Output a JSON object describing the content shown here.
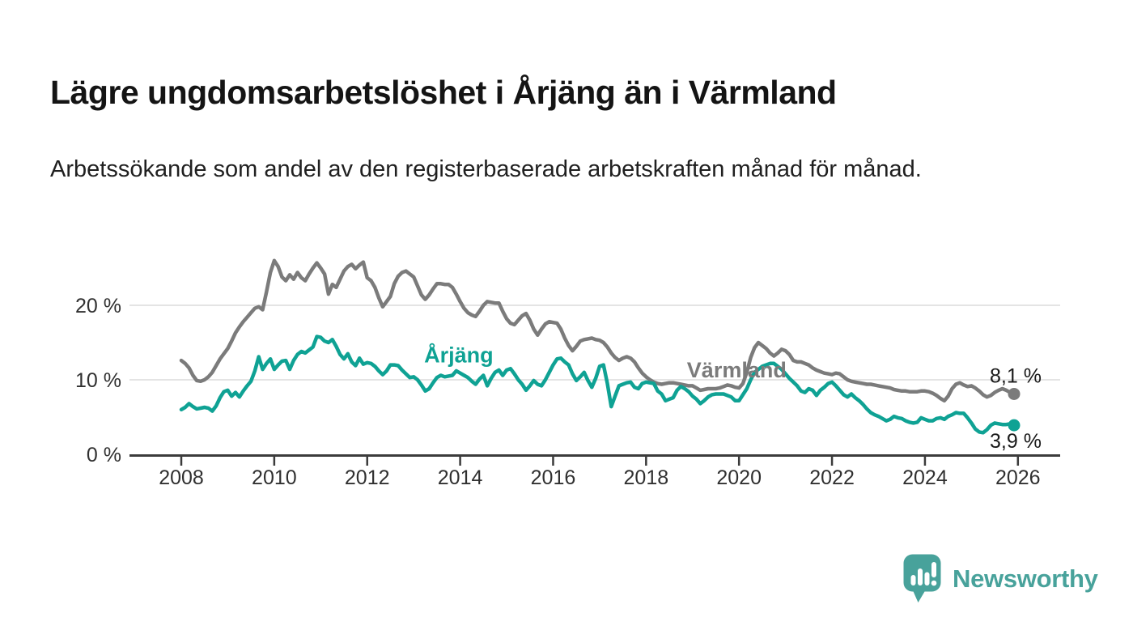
{
  "header": {
    "title": "Lägre ungdomsarbetslöshet i Årjäng än i Värmland",
    "subtitle": "Arbetssökande som andel av den registerbaserade arbetskraften månad för månad."
  },
  "footer": {
    "brand": "Newsworthy"
  },
  "colors": {
    "arjang_teal": "#0FA294",
    "varmland_gray": "#7B7B7B",
    "axis": "#3b3b3b",
    "grid": "#dcdcdc",
    "tick_text": "#303030",
    "value_label_text": "#1a1a1a",
    "brand_teal": "#48A29B"
  },
  "chart_data": {
    "type": "line",
    "title": "Lägre ungdomsarbetslöshet i Årjäng än i Värmland",
    "xlabel": "",
    "ylabel": "",
    "grid": "horizontal",
    "legend_position": "inline-labels",
    "ylim": [
      0,
      27.5
    ],
    "xlim": [
      2006.9,
      2026.9
    ],
    "x_start": 2008.0,
    "x_step": 0.083333,
    "yticks": [
      {
        "v": 0,
        "label": "0 %"
      },
      {
        "v": 10,
        "label": "10 %"
      },
      {
        "v": 20,
        "label": "20 %"
      }
    ],
    "xticks": [
      {
        "v": 2008,
        "label": "2008"
      },
      {
        "v": 2010,
        "label": "2010"
      },
      {
        "v": 2012,
        "label": "2012"
      },
      {
        "v": 2014,
        "label": "2014"
      },
      {
        "v": 2016,
        "label": "2016"
      },
      {
        "v": 2018,
        "label": "2018"
      },
      {
        "v": 2020,
        "label": "2020"
      },
      {
        "v": 2022,
        "label": "2022"
      },
      {
        "v": 2024,
        "label": "2024"
      },
      {
        "v": 2026,
        "label": "2026"
      }
    ],
    "series": [
      {
        "name": "Värmland",
        "key": "varmland",
        "color": "#7B7B7B",
        "end_label": "8,1 %",
        "end_label_pos": "above",
        "end_dot": true,
        "label_anchor": {
          "year": 2019.95,
          "value": 11.3
        },
        "values": [
          12.6,
          12.2,
          11.6,
          10.6,
          9.9,
          9.8,
          10.0,
          10.4,
          11.0,
          11.9,
          12.8,
          13.5,
          14.2,
          15.2,
          16.3,
          17.1,
          17.8,
          18.4,
          19.0,
          19.6,
          19.8,
          19.4,
          21.8,
          24.4,
          26.0,
          25.2,
          23.8,
          23.3,
          24.1,
          23.5,
          24.4,
          23.7,
          23.3,
          24.2,
          25.0,
          25.7,
          25.0,
          24.2,
          21.5,
          22.8,
          22.4,
          23.5,
          24.6,
          25.2,
          25.5,
          24.9,
          25.4,
          25.8,
          23.7,
          23.3,
          22.4,
          21.0,
          19.8,
          20.5,
          21.2,
          22.9,
          23.9,
          24.4,
          24.6,
          24.2,
          23.8,
          22.6,
          21.4,
          20.8,
          21.4,
          22.2,
          22.9,
          22.9,
          22.8,
          22.8,
          22.4,
          21.5,
          20.5,
          19.6,
          19.0,
          18.7,
          18.5,
          19.2,
          20.0,
          20.5,
          20.4,
          20.3,
          20.3,
          19.2,
          18.2,
          17.6,
          17.4,
          18.0,
          18.6,
          18.9,
          18.0,
          16.8,
          16.0,
          16.8,
          17.5,
          17.8,
          17.7,
          17.6,
          16.8,
          15.6,
          14.6,
          13.9,
          14.5,
          15.2,
          15.4,
          15.5,
          15.6,
          15.4,
          15.3,
          15.0,
          14.4,
          13.6,
          13.0,
          12.6,
          12.9,
          13.1,
          12.9,
          12.4,
          11.6,
          10.9,
          10.4,
          10.0,
          9.7,
          9.5,
          9.4,
          9.5,
          9.6,
          9.6,
          9.5,
          9.4,
          9.3,
          9.2,
          9.2,
          8.9,
          8.6,
          8.7,
          8.8,
          8.8,
          8.8,
          8.9,
          9.1,
          9.3,
          9.2,
          9.0,
          8.9,
          9.5,
          11.0,
          13.0,
          14.3,
          15.0,
          14.6,
          14.2,
          13.6,
          13.2,
          13.6,
          14.1,
          13.9,
          13.4,
          12.6,
          12.4,
          12.4,
          12.2,
          12.0,
          11.6,
          11.3,
          11.1,
          10.9,
          10.8,
          10.7,
          10.9,
          10.8,
          10.4,
          10.0,
          9.8,
          9.7,
          9.6,
          9.5,
          9.4,
          9.4,
          9.3,
          9.2,
          9.1,
          9.0,
          8.9,
          8.7,
          8.6,
          8.5,
          8.5,
          8.4,
          8.4,
          8.4,
          8.5,
          8.5,
          8.4,
          8.2,
          7.9,
          7.5,
          7.2,
          7.8,
          8.8,
          9.4,
          9.6,
          9.3,
          9.1,
          9.2,
          8.9,
          8.5,
          8.0,
          7.7,
          7.9,
          8.3,
          8.6,
          8.8,
          8.6,
          8.3,
          8.1
        ]
      },
      {
        "name": "Årjäng",
        "key": "arjang",
        "color": "#0FA294",
        "end_label": "3,9 %",
        "end_label_pos": "below",
        "end_dot": true,
        "label_anchor": {
          "year": 2013.97,
          "value": 13.3
        },
        "values": [
          6.0,
          6.3,
          6.8,
          6.4,
          6.1,
          6.2,
          6.3,
          6.2,
          5.8,
          6.5,
          7.6,
          8.4,
          8.6,
          7.8,
          8.3,
          7.7,
          8.5,
          9.2,
          9.8,
          11.2,
          13.1,
          11.4,
          12.2,
          12.8,
          11.4,
          12.0,
          12.5,
          12.6,
          11.4,
          12.6,
          13.4,
          13.8,
          13.6,
          14.0,
          14.4,
          15.8,
          15.7,
          15.2,
          15.0,
          15.4,
          14.5,
          13.4,
          12.8,
          13.5,
          12.4,
          11.9,
          12.9,
          12.1,
          12.3,
          12.2,
          11.8,
          11.2,
          10.7,
          11.2,
          12.0,
          12.0,
          11.9,
          11.3,
          10.8,
          10.3,
          10.4,
          10.0,
          9.3,
          8.5,
          8.8,
          9.6,
          10.3,
          10.6,
          10.4,
          10.5,
          10.6,
          11.2,
          10.9,
          10.6,
          10.3,
          9.8,
          9.4,
          10.1,
          10.6,
          9.2,
          10.2,
          11.0,
          11.3,
          10.6,
          11.3,
          11.5,
          10.8,
          10.0,
          9.4,
          8.6,
          9.2,
          9.9,
          9.4,
          9.2,
          10.0,
          11.0,
          12.0,
          12.8,
          12.9,
          12.4,
          12.0,
          10.8,
          9.9,
          10.4,
          11.0,
          9.9,
          9.0,
          10.2,
          11.8,
          12.0,
          9.5,
          6.4,
          7.8,
          9.2,
          9.4,
          9.6,
          9.7,
          9.0,
          8.8,
          9.5,
          9.7,
          9.6,
          9.5,
          8.5,
          8.1,
          7.2,
          7.4,
          7.6,
          8.6,
          9.1,
          8.8,
          8.4,
          7.8,
          7.4,
          6.8,
          7.2,
          7.7,
          8.0,
          8.1,
          8.1,
          8.1,
          7.9,
          7.7,
          7.2,
          7.2,
          8.0,
          8.8,
          10.0,
          11.0,
          11.4,
          11.8,
          12.0,
          12.2,
          12.2,
          11.8,
          11.4,
          10.8,
          10.2,
          9.7,
          9.2,
          8.5,
          8.3,
          8.8,
          8.6,
          7.9,
          8.6,
          9.0,
          9.5,
          9.7,
          9.2,
          8.6,
          8.0,
          7.7,
          8.1,
          7.6,
          7.2,
          6.7,
          6.1,
          5.6,
          5.3,
          5.1,
          4.8,
          4.5,
          4.7,
          5.1,
          4.9,
          4.8,
          4.5,
          4.3,
          4.2,
          4.3,
          4.9,
          4.7,
          4.5,
          4.5,
          4.8,
          4.9,
          4.7,
          5.1,
          5.3,
          5.6,
          5.5,
          5.5,
          4.9,
          4.2,
          3.4,
          3.0,
          2.9,
          3.3,
          3.9,
          4.2,
          4.1,
          4.0,
          4.0,
          4.1,
          3.9
        ]
      }
    ]
  }
}
